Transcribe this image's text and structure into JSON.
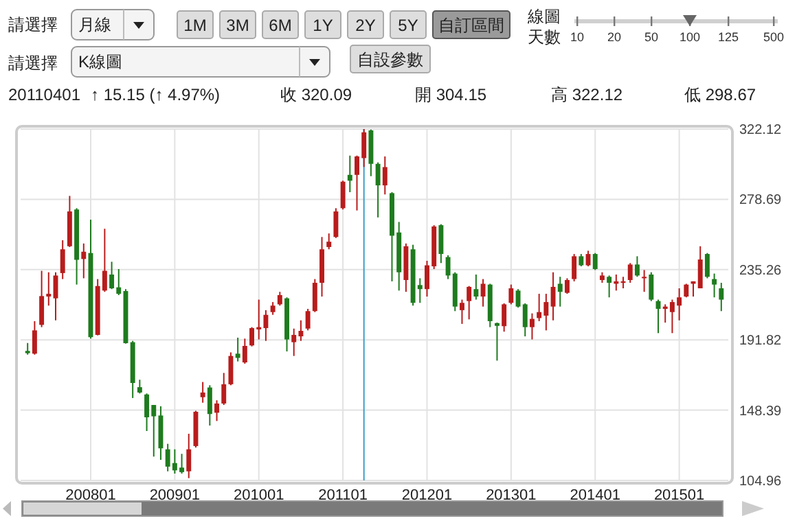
{
  "chart_data": {
    "type": "candlestick",
    "annotations": [
      "請選擇",
      "月線",
      "1M",
      "3M",
      "6M",
      "1Y",
      "2Y",
      "5Y",
      "自訂區間",
      "線圖",
      "天數",
      "10",
      "20",
      "50",
      "100",
      "125",
      "500",
      "請選擇",
      "K線圖",
      "自設參數",
      "20110401",
      "↑ 15.15 (↑ 4.97%)",
      "收 320.09",
      "開 304.15",
      "高 322.12",
      "低 298.67"
    ],
    "x": [
      "2007-04",
      "2007-05",
      "2007-06",
      "2007-07",
      "2007-08",
      "2007-09",
      "2007-10",
      "2007-11",
      "2007-12",
      "2008-01",
      "2008-02",
      "2008-03",
      "2008-04",
      "2008-05",
      "2008-06",
      "2008-07",
      "2008-08",
      "2008-09",
      "2008-10",
      "2008-11",
      "2008-12",
      "2009-01",
      "2009-02",
      "2009-03",
      "2009-04",
      "2009-05",
      "2009-06",
      "2009-07",
      "2009-08",
      "2009-09",
      "2009-10",
      "2009-11",
      "2009-12",
      "2010-01",
      "2010-02",
      "2010-03",
      "2010-04",
      "2010-05",
      "2010-06",
      "2010-07",
      "2010-08",
      "2010-09",
      "2010-10",
      "2010-11",
      "2010-12",
      "2011-01",
      "2011-02",
      "2011-03",
      "2011-04",
      "2011-05",
      "2011-06",
      "2011-07",
      "2011-08",
      "2011-09",
      "2011-10",
      "2011-11",
      "2011-12",
      "2012-01",
      "2012-02",
      "2012-03",
      "2012-04",
      "2012-05",
      "2012-06",
      "2012-07",
      "2012-08",
      "2012-09",
      "2012-10",
      "2012-11",
      "2012-12",
      "2013-01",
      "2013-02",
      "2013-03",
      "2013-04",
      "2013-05",
      "2013-06",
      "2013-07",
      "2013-08",
      "2013-09",
      "2013-10",
      "2013-11",
      "2013-12",
      "2014-01",
      "2014-02",
      "2014-03",
      "2014-04",
      "2014-05",
      "2014-06",
      "2014-07",
      "2014-08",
      "2014-09",
      "2014-10",
      "2014-11",
      "2014-12",
      "2015-01",
      "2015-02",
      "2015-03",
      "2015-04",
      "2015-05",
      "2015-06",
      "2015-07"
    ],
    "ohlc": [
      [
        185.0,
        189.9,
        182.7,
        183.6
      ],
      [
        183.3,
        203.4,
        182.7,
        197.7
      ],
      [
        201.1,
        234.5,
        199.7,
        218.9
      ],
      [
        218.6,
        233.6,
        213.0,
        220.3
      ],
      [
        217.5,
        233.6,
        203.9,
        231.6
      ],
      [
        233.1,
        253.4,
        229.4,
        247.8
      ],
      [
        249.7,
        280.8,
        249.2,
        271.2
      ],
      [
        272.4,
        273.2,
        226.0,
        241.3
      ],
      [
        241.8,
        251.4,
        229.9,
        246.3
      ],
      [
        245.5,
        266.1,
        192.6,
        193.5
      ],
      [
        194.9,
        229.4,
        194.6,
        225.1
      ],
      [
        222.3,
        260.5,
        221.5,
        234.5
      ],
      [
        232.2,
        240.1,
        223.2,
        223.7
      ],
      [
        224.3,
        235.6,
        219.5,
        220.3
      ],
      [
        222.0,
        223.2,
        189.5,
        189.8
      ],
      [
        190.4,
        191.2,
        155.9,
        165.2
      ],
      [
        162.6,
        167.2,
        158.7,
        159.3
      ],
      [
        158.1,
        158.7,
        135.5,
        144.0
      ],
      [
        151.6,
        151.6,
        119.7,
        144.6
      ],
      [
        145.1,
        150.8,
        117.7,
        124.8
      ],
      [
        124.2,
        127.6,
        110.6,
        113.5
      ],
      [
        115.7,
        124.2,
        109.2,
        111.2
      ],
      [
        112.9,
        121.4,
        109.2,
        110.1
      ],
      [
        110.6,
        133.8,
        106.4,
        124.2
      ],
      [
        126.2,
        148.0,
        125.3,
        147.4
      ],
      [
        156.4,
        165.8,
        153.0,
        159.3
      ],
      [
        162.4,
        163.8,
        138.9,
        146.0
      ],
      [
        146.8,
        154.5,
        141.7,
        152.5
      ],
      [
        152.5,
        171.4,
        151.6,
        164.4
      ],
      [
        164.4,
        184.1,
        163.8,
        181.9
      ],
      [
        183.3,
        193.2,
        178.5,
        180.7
      ],
      [
        177.9,
        192.6,
        177.1,
        188.1
      ],
      [
        188.4,
        199.7,
        187.8,
        199.1
      ],
      [
        198.3,
        216.7,
        192.1,
        199.7
      ],
      [
        199.1,
        210.2,
        191.2,
        207.3
      ],
      [
        209.0,
        215.2,
        207.3,
        213.0
      ],
      [
        213.8,
        221.5,
        213.0,
        219.5
      ],
      [
        217.5,
        218.1,
        184.7,
        192.1
      ],
      [
        190.4,
        198.8,
        181.9,
        194.9
      ],
      [
        194.0,
        203.9,
        191.2,
        197.4
      ],
      [
        198.8,
        211.0,
        197.7,
        209.6
      ],
      [
        209.6,
        229.4,
        209.0,
        227.1
      ],
      [
        227.1,
        255.4,
        218.6,
        247.8
      ],
      [
        249.2,
        257.6,
        247.8,
        252.5
      ],
      [
        255.4,
        273.2,
        254.8,
        271.2
      ],
      [
        273.2,
        290.2,
        272.4,
        289.6
      ],
      [
        293.8,
        305.7,
        283.1,
        290.2
      ],
      [
        293.8,
        305.7,
        271.8,
        305.2
      ],
      [
        304.15,
        322.12,
        298.67,
        320.09
      ],
      [
        321.3,
        321.8,
        293.0,
        300.6
      ],
      [
        300.6,
        301.5,
        267.5,
        287.3
      ],
      [
        287.3,
        305.2,
        281.7,
        298.6
      ],
      [
        282.5,
        283.1,
        228.0,
        256.2
      ],
      [
        258.2,
        264.7,
        222.3,
        233.6
      ],
      [
        228.8,
        251.4,
        221.5,
        249.7
      ],
      [
        247.8,
        250.6,
        213.0,
        214.7
      ],
      [
        225.7,
        229.9,
        214.7,
        223.2
      ],
      [
        223.2,
        240.7,
        218.6,
        237.9
      ],
      [
        237.3,
        262.7,
        235.6,
        261.9
      ],
      [
        262.7,
        263.3,
        239.3,
        244.9
      ],
      [
        243.0,
        244.1,
        229.4,
        231.6
      ],
      [
        232.8,
        233.6,
        209.6,
        212.4
      ],
      [
        210.2,
        216.7,
        201.7,
        214.7
      ],
      [
        215.8,
        225.1,
        204.5,
        224.6
      ],
      [
        223.2,
        232.2,
        216.7,
        218.6
      ],
      [
        218.6,
        229.4,
        212.4,
        226.5
      ],
      [
        226.0,
        226.5,
        199.7,
        203.4
      ],
      [
        202.2,
        202.5,
        179.0,
        200.5
      ],
      [
        200.3,
        214.4,
        196.9,
        213.8
      ],
      [
        214.7,
        226.0,
        213.8,
        223.7
      ],
      [
        222.3,
        223.2,
        211.8,
        212.4
      ],
      [
        213.8,
        214.4,
        194.0,
        199.7
      ],
      [
        199.7,
        208.2,
        192.1,
        204.8
      ],
      [
        205.3,
        220.3,
        203.4,
        209.0
      ],
      [
        206.8,
        220.3,
        197.7,
        215.2
      ],
      [
        212.4,
        233.6,
        203.9,
        224.6
      ],
      [
        226.5,
        230.8,
        212.4,
        221.5
      ],
      [
        220.9,
        229.9,
        220.3,
        228.8
      ],
      [
        229.4,
        244.9,
        228.0,
        243.5
      ],
      [
        243.5,
        244.9,
        237.3,
        237.9
      ],
      [
        237.9,
        246.9,
        237.3,
        244.9
      ],
      [
        244.9,
        245.5,
        235.0,
        235.6
      ],
      [
        228.8,
        233.6,
        227.1,
        231.6
      ],
      [
        230.8,
        231.6,
        218.1,
        227.1
      ],
      [
        226.5,
        232.2,
        222.3,
        228.0
      ],
      [
        227.1,
        230.8,
        223.7,
        228.0
      ],
      [
        228.8,
        239.3,
        227.1,
        238.4
      ],
      [
        238.4,
        243.5,
        230.8,
        231.6
      ],
      [
        229.9,
        235.0,
        221.5,
        230.8
      ],
      [
        232.2,
        233.6,
        215.8,
        216.7
      ],
      [
        215.8,
        216.7,
        196.0,
        211.0
      ],
      [
        211.0,
        213.8,
        202.5,
        212.4
      ],
      [
        209.0,
        216.7,
        196.0,
        215.2
      ],
      [
        213.0,
        223.7,
        203.9,
        218.1
      ],
      [
        218.6,
        226.5,
        218.1,
        226.0
      ],
      [
        226.5,
        228.0,
        218.6,
        228.0
      ],
      [
        223.7,
        249.7,
        223.7,
        241.5
      ],
      [
        244.9,
        245.5,
        229.9,
        230.8
      ],
      [
        229.4,
        232.8,
        218.1,
        226.0
      ],
      [
        223.7,
        227.1,
        209.6,
        216.7
      ]
    ],
    "colors": [
      "#1e7b1e",
      "#b81c1c",
      "#b81c1c",
      "#b81c1c",
      "#b81c1c",
      "#b81c1c",
      "#b81c1c",
      "#1e7b1e",
      "#b81c1c",
      "#1e7b1e",
      "#b81c1c",
      "#b81c1c",
      "#1e7b1e",
      "#1e7b1e",
      "#1e7b1e",
      "#1e7b1e",
      "#1e7b1e",
      "#1e7b1e",
      "#1e7b1e",
      "#1e7b1e",
      "#1e7b1e",
      "#1e7b1e",
      "#1e7b1e",
      "#b81c1c",
      "#b81c1c",
      "#b81c1c",
      "#1e7b1e",
      "#b81c1c",
      "#b81c1c",
      "#b81c1c",
      "#1e7b1e",
      "#b81c1c",
      "#b81c1c",
      "#b81c1c",
      "#b81c1c",
      "#b81c1c",
      "#b81c1c",
      "#1e7b1e",
      "#b81c1c",
      "#b81c1c",
      "#b81c1c",
      "#b81c1c",
      "#b81c1c",
      "#b81c1c",
      "#b81c1c",
      "#b81c1c",
      "#1e7b1e",
      "#b81c1c",
      "#b81c1c",
      "#1e7b1e",
      "#1e7b1e",
      "#b81c1c",
      "#1e7b1e",
      "#1e7b1e",
      "#b81c1c",
      "#1e7b1e",
      "#1e7b1e",
      "#b81c1c",
      "#b81c1c",
      "#1e7b1e",
      "#1e7b1e",
      "#1e7b1e",
      "#b81c1c",
      "#b81c1c",
      "#1e7b1e",
      "#b81c1c",
      "#1e7b1e",
      "#1e7b1e",
      "#b81c1c",
      "#b81c1c",
      "#1e7b1e",
      "#1e7b1e",
      "#b81c1c",
      "#b81c1c",
      "#b81c1c",
      "#b81c1c",
      "#1e7b1e",
      "#b81c1c",
      "#b81c1c",
      "#1e7b1e",
      "#b81c1c",
      "#1e7b1e",
      "#b81c1c",
      "#1e7b1e",
      "#b81c1c",
      "#b81c1c",
      "#b81c1c",
      "#1e7b1e",
      "#b81c1c",
      "#1e7b1e",
      "#1e7b1e",
      "#b81c1c",
      "#b81c1c",
      "#b81c1c",
      "#b81c1c",
      "#b81c1c",
      "#b81c1c",
      "#1e7b1e",
      "#1e7b1e",
      "#1e7b1e"
    ],
    "xlim": [
      "2007-03",
      "2015-08"
    ],
    "xticks": [
      {
        "value": "2008-01",
        "label": "200801"
      },
      {
        "value": "2009-01",
        "label": "200901"
      },
      {
        "value": "2010-01",
        "label": "201001"
      },
      {
        "value": "2011-01",
        "label": "201101"
      },
      {
        "value": "2012-01",
        "label": "201201"
      },
      {
        "value": "2013-01",
        "label": "201301"
      },
      {
        "value": "2014-01",
        "label": "201401"
      },
      {
        "value": "2015-01",
        "label": "201501"
      }
    ],
    "ylim": [
      104.96,
      322.12
    ],
    "yticks": [
      104.96,
      148.39,
      191.82,
      235.26,
      278.69,
      322.12
    ],
    "ref_lines": [
      {
        "axis": "x",
        "value": "2011-04",
        "color": "#3a9fc9"
      }
    ],
    "grid": true
  }
}
